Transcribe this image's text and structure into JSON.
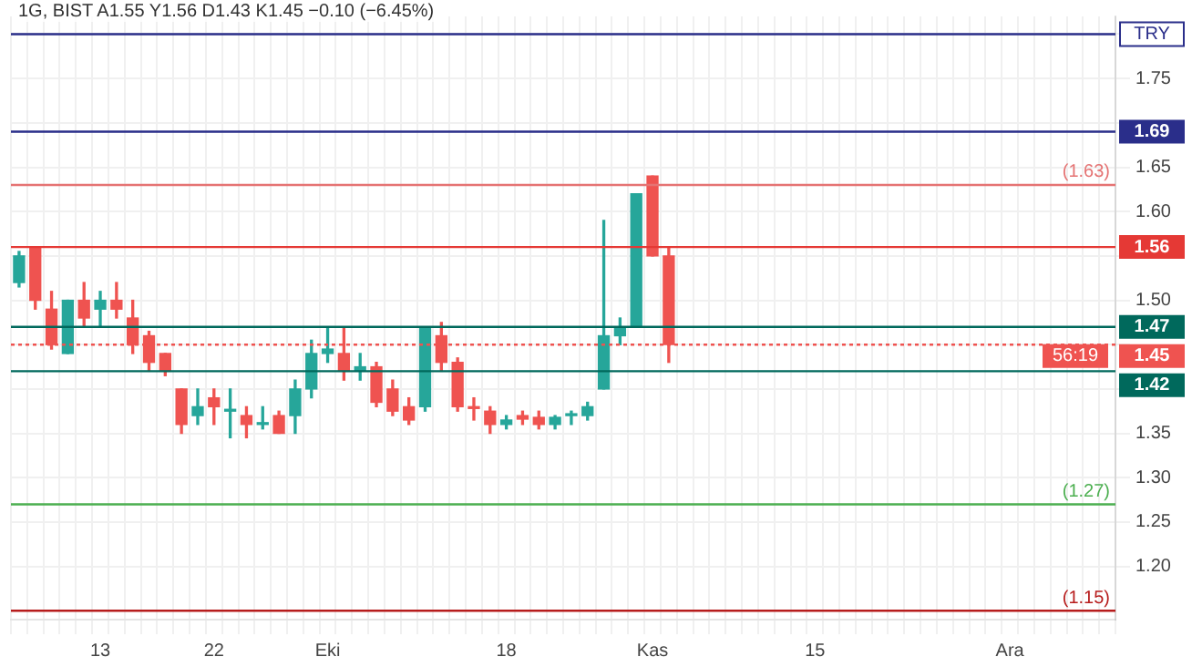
{
  "chart_data": {
    "type": "candlestick",
    "title": "1G, BIST  A1.55  Y1.56  D1.43  K1.45  −0.10 (−6.45%)",
    "ylabel": "TRY",
    "categories": [
      null,
      null,
      null,
      null,
      null,
      "13",
      null,
      null,
      null,
      null,
      null,
      null,
      "22",
      null,
      null,
      null,
      null,
      null,
      null,
      "Eki",
      null,
      null,
      null,
      null,
      null,
      null,
      null,
      null,
      null,
      null,
      "18",
      null,
      null,
      null,
      null,
      null,
      null,
      null,
      null,
      "Kas",
      null,
      null,
      null,
      null,
      null,
      null,
      null,
      null,
      null,
      "15",
      null,
      null,
      null,
      null,
      null,
      null,
      null,
      null,
      null,
      null,
      null,
      "Ara",
      null,
      null,
      null,
      null,
      null,
      null
    ],
    "ohlc": [
      [
        1.52,
        1.555,
        1.515,
        1.55
      ],
      [
        1.56,
        1.56,
        1.49,
        1.5
      ],
      [
        1.49,
        1.51,
        1.445,
        1.45
      ],
      [
        1.44,
        1.5,
        1.44,
        1.5
      ],
      [
        1.5,
        1.52,
        1.47,
        1.48
      ],
      [
        1.49,
        1.51,
        1.47,
        1.5
      ],
      [
        1.5,
        1.52,
        1.48,
        1.49
      ],
      [
        1.48,
        1.5,
        1.44,
        1.45
      ],
      [
        1.46,
        1.465,
        1.42,
        1.43
      ],
      [
        1.44,
        1.44,
        1.415,
        1.42
      ],
      [
        1.4,
        1.4,
        1.35,
        1.36
      ],
      [
        1.37,
        1.4,
        1.36,
        1.38
      ],
      [
        1.39,
        1.4,
        1.36,
        1.38
      ],
      [
        1.375,
        1.4,
        1.345,
        1.377
      ],
      [
        1.37,
        1.38,
        1.345,
        1.36
      ],
      [
        1.36,
        1.38,
        1.355,
        1.362
      ],
      [
        1.37,
        1.375,
        1.35,
        1.35
      ],
      [
        1.37,
        1.41,
        1.35,
        1.4
      ],
      [
        1.4,
        1.455,
        1.39,
        1.44
      ],
      [
        1.44,
        1.47,
        1.43,
        1.445
      ],
      [
        1.44,
        1.47,
        1.41,
        1.42
      ],
      [
        1.42,
        1.44,
        1.41,
        1.425
      ],
      [
        1.425,
        1.43,
        1.38,
        1.385
      ],
      [
        1.4,
        1.41,
        1.37,
        1.375
      ],
      [
        1.38,
        1.39,
        1.36,
        1.365
      ],
      [
        1.38,
        1.47,
        1.375,
        1.47
      ],
      [
        1.46,
        1.475,
        1.42,
        1.43
      ],
      [
        1.43,
        1.435,
        1.375,
        1.38
      ],
      [
        1.38,
        1.39,
        1.365,
        1.378
      ],
      [
        1.375,
        1.38,
        1.35,
        1.36
      ],
      [
        1.36,
        1.37,
        1.355,
        1.365
      ],
      [
        1.37,
        1.375,
        1.36,
        1.366
      ],
      [
        1.368,
        1.375,
        1.355,
        1.36
      ],
      [
        1.36,
        1.37,
        1.355,
        1.368
      ],
      [
        1.37,
        1.375,
        1.36,
        1.372
      ],
      [
        1.37,
        1.385,
        1.365,
        1.38
      ],
      [
        1.4,
        1.59,
        1.4,
        1.46
      ],
      [
        1.46,
        1.48,
        1.45,
        1.47
      ],
      [
        1.47,
        1.62,
        1.47,
        1.62
      ],
      [
        1.64,
        1.64,
        1.55,
        1.55
      ],
      [
        1.55,
        1.56,
        1.43,
        1.45
      ],
      null,
      null,
      null,
      null,
      null,
      null,
      null,
      null,
      null,
      null,
      null,
      null,
      null,
      null,
      null,
      null,
      null,
      null,
      null,
      null,
      null,
      null,
      null,
      null,
      null,
      null,
      null
    ],
    "colors": [
      "#26a69a",
      "#ef5350",
      "#ef5350",
      "#26a69a",
      "#ef5350",
      "#26a69a",
      "#ef5350",
      "#ef5350",
      "#ef5350",
      "#ef5350",
      "#ef5350",
      "#26a69a",
      "#ef5350",
      "#26a69a",
      "#ef5350",
      "#26a69a",
      "#ef5350",
      "#26a69a",
      "#26a69a",
      "#26a69a",
      "#ef5350",
      "#26a69a",
      "#ef5350",
      "#ef5350",
      "#ef5350",
      "#26a69a",
      "#ef5350",
      "#ef5350",
      "#ef5350",
      "#ef5350",
      "#26a69a",
      "#ef5350",
      "#ef5350",
      "#26a69a",
      "#26a69a",
      "#26a69a",
      "#26a69a",
      "#26a69a",
      "#26a69a",
      "#ef5350",
      "#ef5350",
      null,
      null,
      null,
      null,
      null,
      null,
      null,
      null,
      null,
      null,
      null,
      null,
      null,
      null,
      null,
      null,
      null,
      null,
      null,
      null,
      null,
      null,
      null,
      null,
      null,
      null,
      null
    ],
    "ylim": [
      1.14,
      1.82
    ],
    "yticks": [
      {
        "value": 1.2,
        "label": "1.20"
      },
      {
        "value": 1.25,
        "label": "1.25"
      },
      {
        "value": 1.3,
        "label": "1.30"
      },
      {
        "value": 1.35,
        "label": "1.35"
      },
      {
        "value": 1.4,
        "label": null
      },
      {
        "value": 1.45,
        "label": null
      },
      {
        "value": 1.5,
        "label": "1.50"
      },
      {
        "value": 1.55,
        "label": null
      },
      {
        "value": 1.6,
        "label": "1.60"
      },
      {
        "value": 1.65,
        "label": "1.65"
      },
      {
        "value": 1.7,
        "label": null
      },
      {
        "value": 1.75,
        "label": "1.75"
      },
      {
        "value": 1.8,
        "label": null
      }
    ],
    "ref_lines": [
      {
        "axis": "y",
        "value": 1.8,
        "label": null,
        "color": "#2a2e8a"
      },
      {
        "axis": "y",
        "value": 1.69,
        "label": "1.69",
        "color": "#2a2e8a"
      },
      {
        "axis": "y",
        "value": 1.63,
        "label": null,
        "color": "#e57373"
      },
      {
        "axis": "y",
        "value": 1.56,
        "label": "1.56",
        "color": "#e53935"
      },
      {
        "axis": "y",
        "value": 1.47,
        "label": "1.47",
        "color": "#00695c"
      },
      {
        "axis": "y",
        "value": 1.45,
        "label": "1.45",
        "color": "#ef5350",
        "line_style": "dotted"
      },
      {
        "axis": "y",
        "value": 1.42,
        "label": "1.42",
        "color": "#00695c"
      },
      {
        "axis": "y",
        "value": 1.27,
        "label": null,
        "color": "#4caf50"
      },
      {
        "axis": "y",
        "value": 1.15,
        "label": null,
        "color": "#b71c1c"
      }
    ],
    "annotations": [
      "56:19",
      {
        "text": "(1.63)",
        "y": 1.63
      },
      {
        "text": "(1.27)",
        "y": 1.27
      },
      {
        "text": "(1.15)",
        "y": 1.15
      }
    ],
    "grid": true,
    "legend": false
  }
}
